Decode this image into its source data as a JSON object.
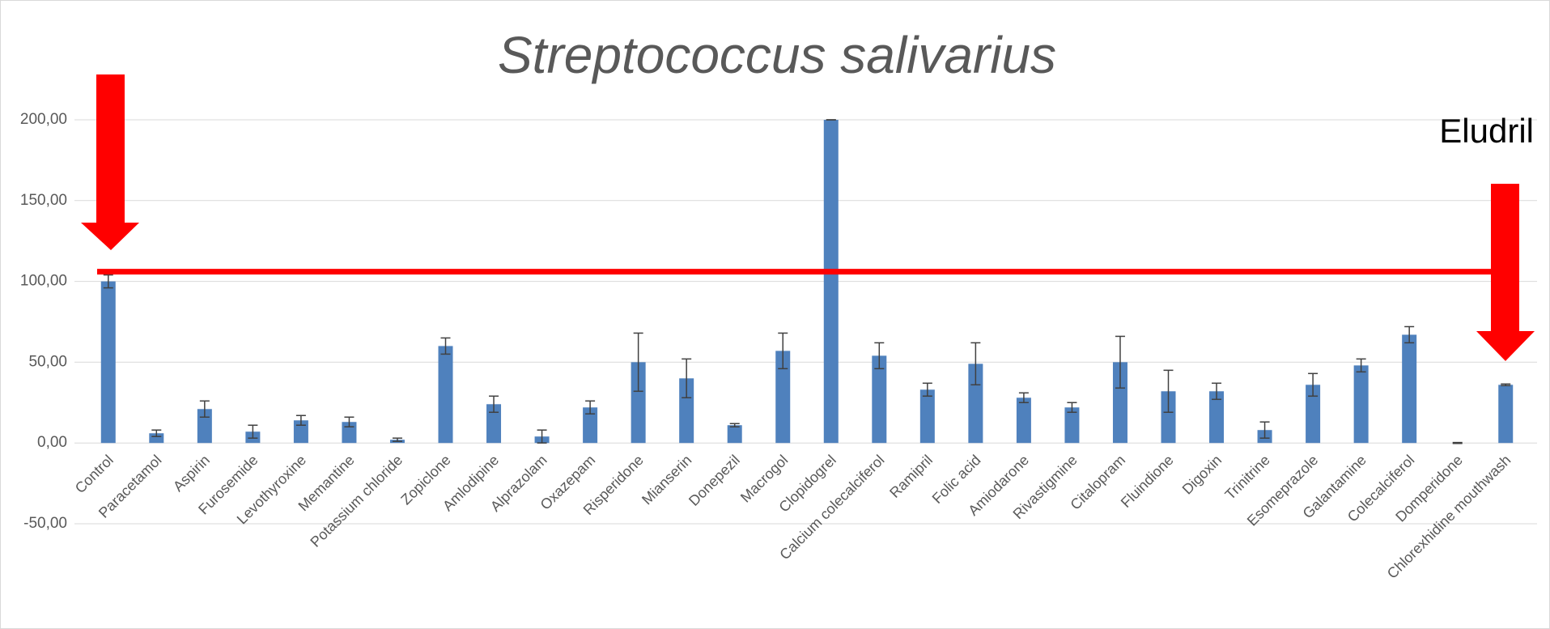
{
  "chart_data": {
    "type": "bar",
    "title": "Streptococcus salivarius",
    "categories": [
      "Control",
      "Paracetamol",
      "Aspirin",
      "Furosemide",
      "Levothyroxine",
      "Memantine",
      "Potassium chloride",
      "Zopiclone",
      "Amlodipine",
      "Alprazolam",
      "Oxazepam",
      "Risperidone",
      "Mianserin",
      "Donepezil",
      "Macrogol",
      "Clopidogrel",
      "Calcium colecalciferol",
      "Ramipril",
      "Folic acid",
      "Amiodarone",
      "Rivastigmine",
      "Citalopram",
      "Fluindione",
      "Digoxin",
      "Trinitrine",
      "Esomeprazole",
      "Galantamine",
      "Colecalciferol",
      "Domperidone",
      "Chlorexhidine mouthwash"
    ],
    "values": [
      100,
      6,
      21,
      7,
      14,
      13,
      2,
      60,
      24,
      4,
      22,
      50,
      40,
      11,
      57,
      200,
      54,
      33,
      49,
      28,
      22,
      50,
      32,
      32,
      8,
      36,
      48,
      67,
      0,
      36
    ],
    "errors": [
      4,
      2,
      5,
      4,
      3,
      3,
      1,
      5,
      5,
      4,
      4,
      18,
      12,
      1,
      11,
      0,
      8,
      4,
      13,
      3,
      3,
      16,
      13,
      5,
      5,
      7,
      4,
      5,
      0.3,
      0.5
    ],
    "color": "#4f81bd",
    "ylim": [
      -50,
      200
    ],
    "yticks": [
      {
        "value": -50,
        "label": "-50,00"
      },
      {
        "value": 0,
        "label": "0,00"
      },
      {
        "value": 50,
        "label": "50,00"
      },
      {
        "value": 100,
        "label": "100,00"
      },
      {
        "value": 150,
        "label": "150,00"
      },
      {
        "value": 200,
        "label": "200,00"
      }
    ],
    "grid": true,
    "reference_line": 106,
    "annotation": "Eludril"
  }
}
